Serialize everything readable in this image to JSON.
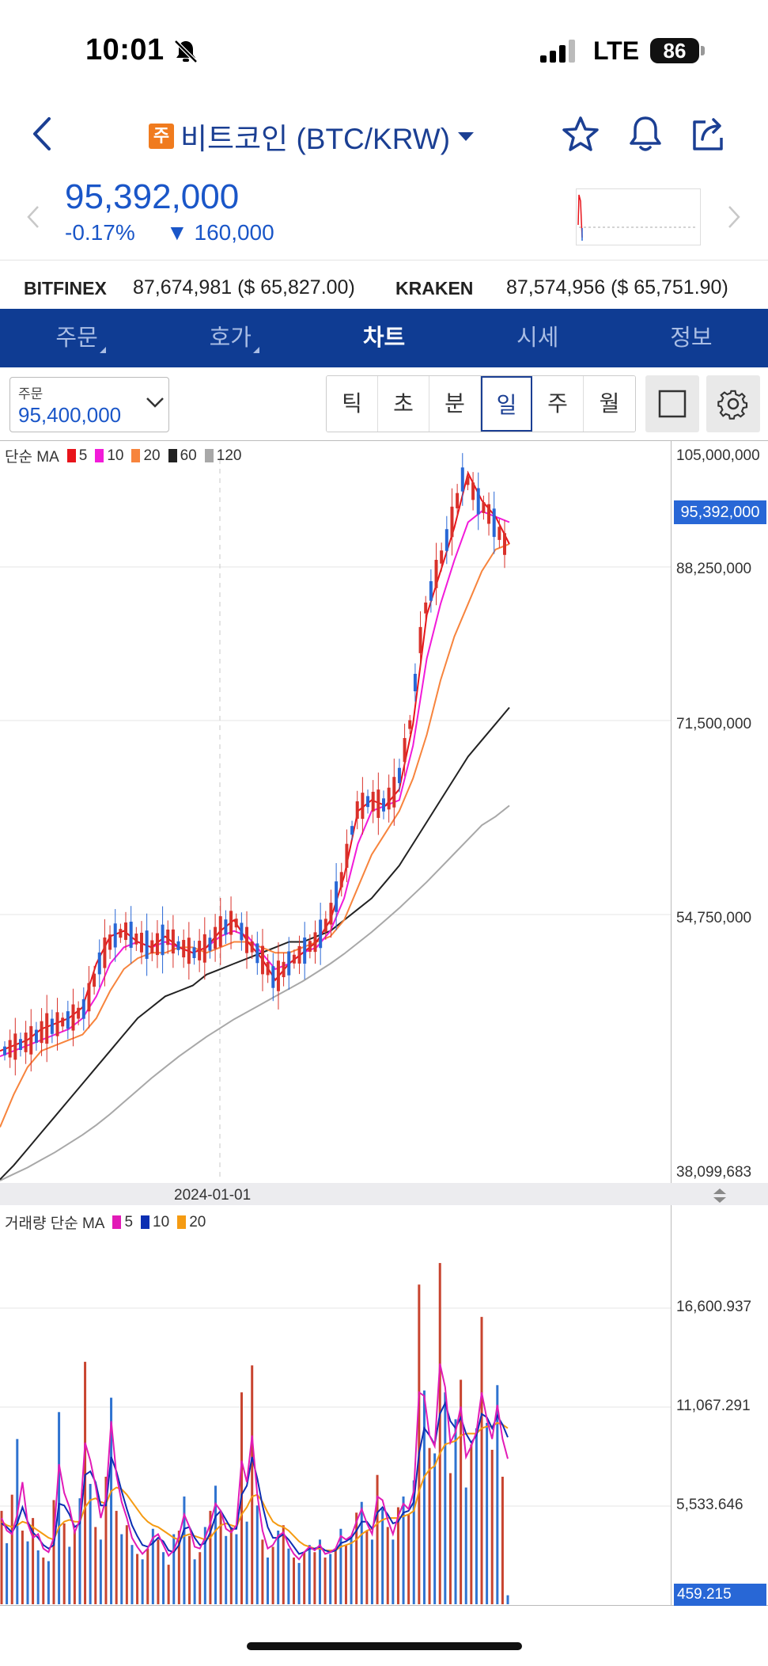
{
  "status_bar": {
    "time": "10:01",
    "network": "LTE",
    "battery": "86"
  },
  "header": {
    "coin_badge": "주",
    "title": "비트코인 (BTC/KRW)",
    "price": "95,392,000",
    "change_pct": "-0.17%",
    "change_amt": "▼ 160,000"
  },
  "exchanges": [
    {
      "name": "BITFINEX",
      "value": "87,674,981 ($ 65,827.00)"
    },
    {
      "name": "KRAKEN",
      "value": "87,574,956 ($ 65,751.90)"
    }
  ],
  "tabs": [
    {
      "label": "주문",
      "has_arrow": true
    },
    {
      "label": "호가",
      "has_arrow": true
    },
    {
      "label": "차트",
      "active": true
    },
    {
      "label": "시세"
    },
    {
      "label": "정보"
    }
  ],
  "order": {
    "label": "주문",
    "value": "95,400,000"
  },
  "periods": [
    "틱",
    "초",
    "분",
    "일",
    "주",
    "월"
  ],
  "active_period": "일",
  "price_legend": {
    "title": "단순 MA",
    "items": [
      {
        "label": "5",
        "color": "#e8141b"
      },
      {
        "label": "10",
        "color": "#f21bd9"
      },
      {
        "label": "20",
        "color": "#f7843d"
      },
      {
        "label": "60",
        "color": "#222222"
      },
      {
        "label": "120",
        "color": "#a8a8a8"
      }
    ]
  },
  "volume_legend": {
    "title": "거래량 단순 MA",
    "items": [
      {
        "label": "5",
        "color": "#e21bb7"
      },
      {
        "label": "10",
        "color": "#0c2fb3"
      },
      {
        "label": "20",
        "color": "#f59b12"
      }
    ]
  },
  "price_axis": [
    "105,000,000",
    "88,250,000",
    "71,500,000",
    "54,750,000",
    "38,099,683"
  ],
  "current_price_flag": "95,392,000",
  "volume_axis": [
    "16,600.937",
    "11,067.291",
    "5,533.646"
  ],
  "current_volume_flag": "459.215",
  "date_label": "2024-01-01",
  "chart_data": [
    {
      "type": "line",
      "title": "단순 MA",
      "y_range": [
        38099683,
        105000000
      ],
      "series": [
        {
          "name": "5",
          "color": "#e8141b",
          "values": [
            50,
            50.5,
            51,
            52,
            52.5,
            53,
            54,
            58,
            60.5,
            61,
            60,
            59.5,
            60.5,
            59.5,
            59,
            59.5,
            61,
            62,
            60,
            58.5,
            56.5,
            58,
            59,
            60,
            62,
            66,
            72,
            73,
            72.5,
            74,
            80,
            90,
            94,
            98,
            103,
            100.5,
            99,
            96.5
          ]
        },
        {
          "name": "10",
          "color": "#f21bd9",
          "values": [
            49.5,
            50,
            50.5,
            51,
            51.5,
            52,
            53,
            55,
            58,
            59.5,
            60,
            59.5,
            60,
            59.5,
            59,
            59.5,
            60.5,
            61,
            60.5,
            59,
            57.5,
            58,
            59,
            59.5,
            61,
            64,
            69,
            72,
            72.5,
            73,
            78,
            86,
            91,
            95,
            98.5,
            99.5,
            99,
            98.5
          ]
        },
        {
          "name": "20",
          "color": "#f7843d",
          "values": [
            43,
            46,
            48.5,
            50,
            50.5,
            51,
            51.5,
            53,
            55.5,
            57.5,
            58.5,
            59,
            59,
            59.5,
            59.5,
            59,
            59.5,
            60,
            60,
            59.5,
            59,
            59,
            59.5,
            60,
            60.5,
            62,
            65,
            68,
            70,
            72,
            75,
            79,
            84,
            88,
            91,
            94,
            96,
            96.5
          ]
        },
        {
          "name": "60",
          "color": "#222222",
          "values": [
            38.2,
            39.5,
            41,
            42.5,
            44,
            45.5,
            47,
            48.5,
            50,
            51.5,
            53,
            54,
            55,
            55.5,
            56,
            57,
            57.5,
            58,
            58.5,
            59,
            59.5,
            60,
            60,
            60.5,
            61,
            62,
            63,
            64,
            65.5,
            67,
            69,
            71,
            73,
            75,
            77,
            78.5,
            80,
            81.5
          ]
        },
        {
          "name": "120",
          "color": "#a8a8a8",
          "values": [
            38.1,
            38.7,
            39.3,
            40,
            40.7,
            41.5,
            42.3,
            43.2,
            44.2,
            45.3,
            46.4,
            47.5,
            48.5,
            49.5,
            50.4,
            51.3,
            52.1,
            52.9,
            53.6,
            54.3,
            55,
            55.7,
            56.4,
            57.2,
            58,
            58.9,
            59.9,
            60.9,
            62,
            63.1,
            64.3,
            65.5,
            66.8,
            68.1,
            69.4,
            70.7,
            71.5,
            72.5
          ]
        }
      ]
    },
    {
      "type": "bar",
      "title": "거래량 단순 MA",
      "y_range": [
        0,
        20000
      ],
      "bar_values": [
        5200,
        3400,
        6100,
        9200,
        4100,
        3500,
        4800,
        3000,
        2600,
        2400,
        5800,
        10700,
        4500,
        3200,
        4100,
        5900,
        13500,
        6700,
        4300,
        3600,
        7100,
        11500,
        5200,
        3900,
        4400,
        3300,
        2800,
        2500,
        3100,
        4200,
        3600,
        2900,
        2200,
        3900,
        4100,
        6000,
        3800,
        2500,
        2900,
        4300,
        5200,
        6600,
        5100,
        3800,
        4300,
        3900,
        11800,
        4600,
        13300,
        5500,
        3600,
        2600,
        3200,
        4100,
        4400,
        3100,
        2600,
        2300,
        2900,
        3300,
        2900,
        3600,
        2600,
        2800,
        3000,
        4200,
        3300,
        3800,
        5100,
        5700,
        4100,
        3600,
        7200,
        5300,
        4300,
        3600,
        5400,
        6000,
        5000,
        6900,
        17800,
        11900,
        8700,
        8400,
        19000,
        11800,
        7300,
        10300,
        12500,
        6500,
        8900,
        9800,
        16000,
        10100,
        8600,
        12200,
        7100,
        500
      ],
      "series": [
        {
          "name": "5",
          "color": "#e21bb7",
          "values": [
            4800,
            4100,
            3900,
            5000,
            6800,
            4500,
            3700,
            3900,
            3100,
            2900,
            3700,
            7800,
            6200,
            5400,
            4000,
            4700,
            9000,
            8000,
            6600,
            4800,
            5900,
            10200,
            7200,
            5700,
            4800,
            3700,
            3200,
            2800,
            3100,
            3700,
            3900,
            3300,
            2700,
            3000,
            3800,
            5000,
            4300,
            3200,
            3100,
            3700,
            4500,
            5600,
            5200,
            4200,
            4000,
            4400,
            8000,
            6800,
            9400,
            6100,
            4100,
            3100,
            3300,
            3800,
            4000,
            3300,
            2800,
            2500,
            2900,
            3200,
            3000,
            3300,
            2800,
            2900,
            3100,
            3800,
            3600,
            3800,
            4600,
            5300,
            4500,
            3900,
            6000,
            5800,
            4700,
            3900,
            4900,
            5600,
            5300,
            6300,
            11800,
            11600,
            9400,
            8800,
            13400,
            12100,
            9000,
            9600,
            11000,
            8200,
            8800,
            9600,
            11800,
            10300,
            9200,
            11100,
            9200,
            8100
          ]
        },
        {
          "name": "10",
          "color": "#0c2fb3",
          "values": [
            4500,
            4300,
            4000,
            4500,
            5400,
            4600,
            4000,
            3700,
            3300,
            3100,
            3300,
            5600,
            5500,
            5000,
            4300,
            4500,
            7200,
            7400,
            6800,
            5500,
            5500,
            8200,
            7400,
            6300,
            5300,
            4400,
            3800,
            3300,
            3200,
            3400,
            3700,
            3500,
            3000,
            2900,
            3300,
            4200,
            4300,
            3700,
            3300,
            3400,
            4000,
            4900,
            5200,
            4700,
            4200,
            4200,
            6100,
            6600,
            8200,
            7000,
            5500,
            4300,
            3700,
            3700,
            3900,
            3600,
            3200,
            2800,
            2900,
            3100,
            3100,
            3200,
            3000,
            2900,
            3000,
            3400,
            3500,
            3700,
            4100,
            4600,
            4600,
            4200,
            5100,
            5400,
            5000,
            4500,
            4600,
            5100,
            5200,
            5700,
            8400,
            9800,
            9400,
            8900,
            10600,
            11200,
            10200,
            9800,
            10400,
            9500,
            9000,
            9400,
            10600,
            10400,
            9800,
            10500,
            10000,
            9300
          ]
        },
        {
          "name": "20",
          "color": "#f59b12",
          "values": [
            4600,
            4400,
            4300,
            4400,
            4600,
            4500,
            4300,
            4100,
            3900,
            3700,
            3600,
            4300,
            4600,
            4700,
            4600,
            4600,
            5400,
            5800,
            5900,
            5700,
            5600,
            6300,
            6500,
            6400,
            6100,
            5700,
            5300,
            4900,
            4600,
            4400,
            4300,
            4100,
            3900,
            3700,
            3600,
            3800,
            3900,
            3800,
            3700,
            3600,
            3700,
            4100,
            4400,
            4500,
            4400,
            4300,
            5000,
            5400,
            6000,
            6100,
            5700,
            5100,
            4600,
            4400,
            4300,
            4100,
            3800,
            3500,
            3300,
            3200,
            3100,
            3100,
            3000,
            3000,
            3000,
            3200,
            3300,
            3400,
            3600,
            3900,
            4100,
            4200,
            4500,
            4700,
            4800,
            4800,
            4800,
            4900,
            5000,
            5200,
            6300,
            7100,
            7500,
            7700,
            8400,
            8900,
            9000,
            9100,
            9400,
            9500,
            9500,
            9500,
            9800,
            9900,
            9900,
            10100,
            10000,
            9800
          ]
        }
      ]
    }
  ]
}
